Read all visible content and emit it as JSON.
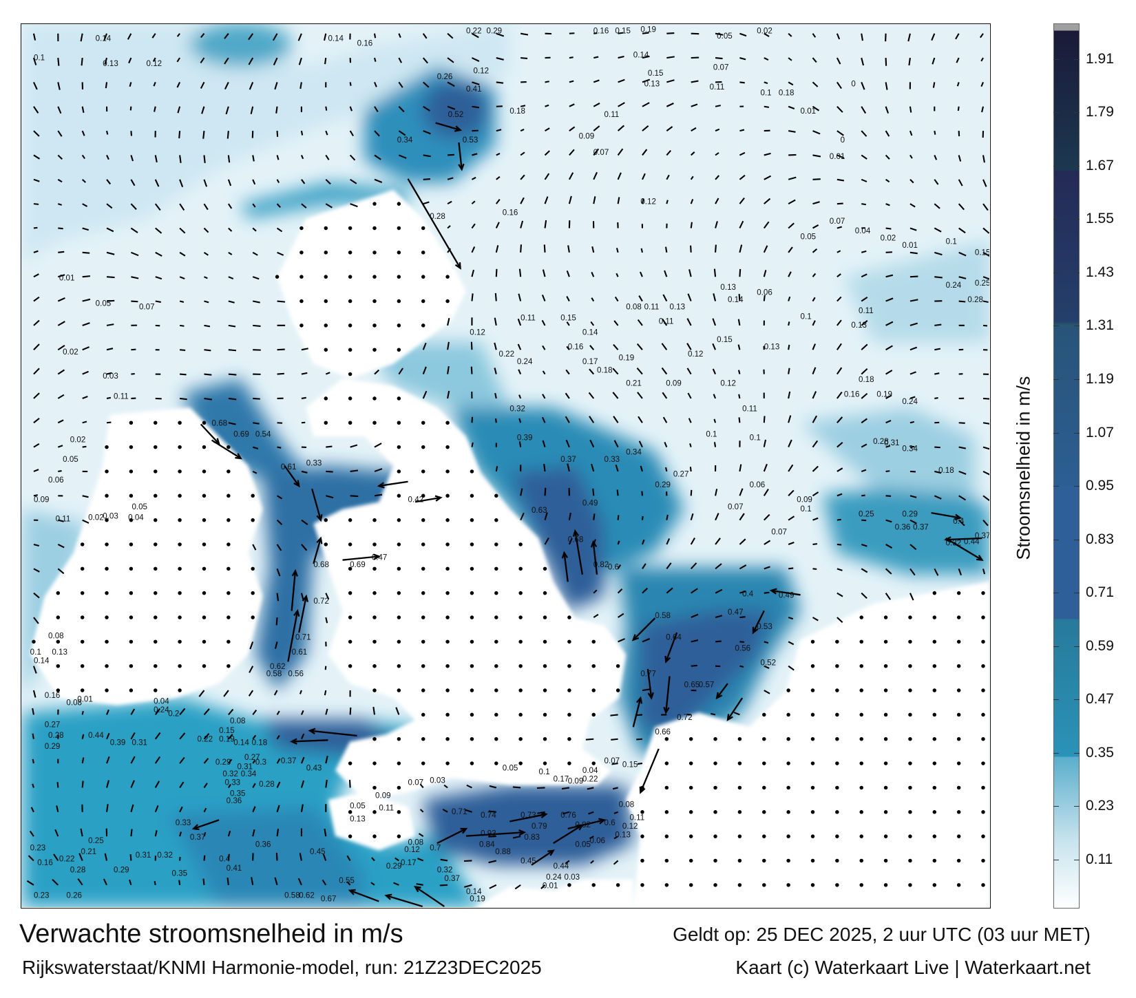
{
  "title": "Verwachte stroomsnelheid in m/s",
  "valid_time": "Geldt op: 25 DEC 2025, 2 uur UTC (03 uur MET)",
  "model": "Rijkswaterstaat/KNMI Harmonie-model, run: 21Z23DEC2025",
  "credit": "Kaart (c) Waterkaart Live | Waterkaart.net",
  "colorbar": {
    "title": "Stroomsnelheid in m/s",
    "range": [
      0,
      1.99
    ],
    "ticks": [
      "0.11",
      "0.23",
      "0.35",
      "0.47",
      "0.59",
      "0.71",
      "0.83",
      "0.95",
      "1.07",
      "1.19",
      "1.31",
      "1.43",
      "1.55",
      "1.67",
      "1.79",
      "1.91"
    ],
    "colors": {
      "low": "#ffffff",
      "light": "#5aaecb",
      "mid": "#2a93b8",
      "dark": "#2e5f99",
      "deep": "#24406b",
      "darkest": "#1a1a38"
    }
  },
  "map": {
    "sea_color": "#e4f2f8",
    "land_color": "#ffffff",
    "arrow_color": "#000000",
    "speed_labels": [
      "0.22",
      "0.29",
      "0.16",
      "0.15",
      "0.19",
      "0.05",
      "0.02",
      "0.14",
      "0.1",
      "0.13",
      "0.12",
      "0.14",
      "0.16",
      "0.26",
      "0.41",
      "0.52",
      "0.34",
      "0.53",
      "0.28",
      "0.16",
      "0.12",
      "0.1",
      "0.15",
      "0.25",
      "0.24",
      "0.28",
      "0.32",
      "0.39",
      "0.37",
      "0.33",
      "0.34",
      "0.29",
      "0.27",
      "0.49",
      "0.63",
      "0.68",
      "0.82",
      "0.6",
      "0.4",
      "0.49",
      "0.47",
      "0.53",
      "0.58",
      "0.64",
      "0.56",
      "0.52",
      "0.77",
      "0.65",
      "0.57",
      "0.72",
      "0.66",
      "0.42",
      "0.47",
      "0.69",
      "0.68",
      "0.72",
      "0.71",
      "0.61",
      "0.62",
      "0.58",
      "0.56",
      "0.68",
      "0.69",
      "0.54",
      "0.33",
      "0.61",
      "0.44",
      "0.39",
      "0.31",
      "0.37",
      "0.43",
      "0.33",
      "0.37",
      "0.4",
      "0.41",
      "0.36",
      "0.45",
      "0.55",
      "0.67",
      "0.58",
      "0.62",
      "0.71",
      "0.74",
      "0.73",
      "0.76",
      "0.79",
      "0.83",
      "0.82",
      "0.6",
      "0.93",
      "0.84",
      "0.88",
      "0.45",
      "0.44",
      "0.24",
      "0.03",
      "0.01",
      "0.32",
      "0.37",
      "0.14",
      "0.19",
      "0.25",
      "0.29",
      "0.36",
      "0.37",
      "0.4",
      "0.44",
      "0.32",
      "0.37",
      "0.18",
      "0.34",
      "0.28",
      "0.31",
      "0.27",
      "0.28",
      "0.29",
      "0.23",
      "0.26",
      "0.16",
      "0.22",
      "0.21",
      "0.28",
      "0.29",
      "0.35",
      "0.31",
      "0.32",
      "0.25",
      "0.23",
      "0.09",
      "0.1",
      "0.07",
      "0.07",
      "0.06",
      "0.1",
      "0.1",
      "0.16",
      "0.19",
      "0.24",
      "0.18",
      "0.13",
      "0.13",
      "0.15",
      "0.12",
      "0.19",
      "0.21",
      "0.09",
      "0.12",
      "0.11",
      "0.18",
      "0.17",
      "0.16",
      "0.14",
      "0.15",
      "0.11",
      "0.24",
      "0.22",
      "0.12",
      "0.11",
      "0.09",
      "0.07",
      "0.15",
      "0.13",
      "0.14",
      "0.07",
      "0.11",
      "0.18",
      "0.12",
      "0.18",
      "0.1",
      "0.01",
      "0",
      "0",
      "0.01",
      "0.05",
      "0.07",
      "0.04",
      "0.02",
      "0.01",
      "0.11",
      "0.1",
      "0.06",
      "0.13",
      "0.14",
      "0.08",
      "0.11",
      "0.13",
      "0.11",
      "0.01",
      "0.05",
      "0.07",
      "0.02",
      "0.03",
      "0.11",
      "0.02",
      "0.05",
      "0.06",
      "0.09",
      "0.11",
      "0.02",
      "0.03",
      "0.05",
      "0.04",
      "0.08",
      "0.1",
      "0.14",
      "0.13",
      "0.16",
      "0.08",
      "0.01",
      "0.24",
      "0.04",
      "0.2",
      "0.22",
      "0.19",
      "0.14",
      "0.18",
      "0.15",
      "0.08",
      "0.29",
      "0.31",
      "0.27",
      "0.3",
      "0.34",
      "0.32",
      "0.33",
      "0.28",
      "0.35",
      "0.36",
      "0.05",
      "0.13",
      "0.11",
      "0.09",
      "0.07",
      "0.03",
      "0.08",
      "0.12",
      "0.17",
      "0.29",
      "0.7",
      "0.05",
      "0.1",
      "0.17",
      "0.09",
      "0.22",
      "0.04",
      "0.07",
      "0.15",
      "0.08",
      "0.11",
      "0.12",
      "0.13",
      "0.06",
      "0.05"
    ]
  }
}
